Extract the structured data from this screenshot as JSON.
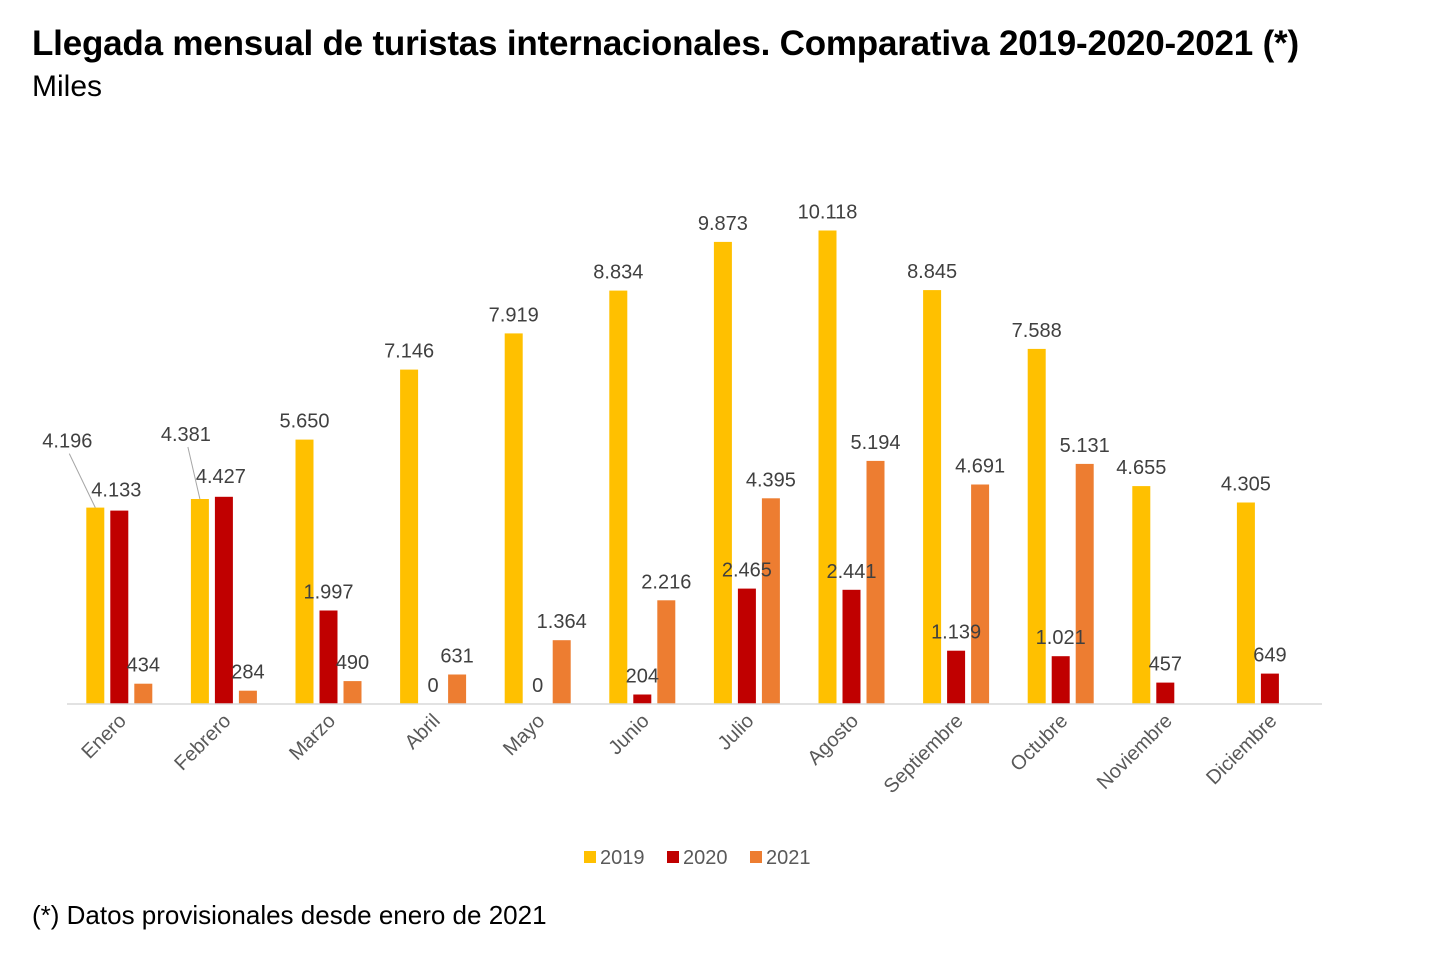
{
  "chart_data": {
    "type": "bar",
    "title": "Llegada mensual de turistas internacionales. Comparativa 2019-2020-2021 (*)",
    "subtitle": "Miles",
    "categories": [
      "Enero",
      "Febrero",
      "Marzo",
      "Abril",
      "Mayo",
      "Junio",
      "Julio",
      "Agosto",
      "Septiembre",
      "Octubre",
      "Noviembre",
      "Diciembre"
    ],
    "series": [
      {
        "name": "2019",
        "color": "#FFC000",
        "values": [
          4196,
          4381,
          5650,
          7146,
          7919,
          8834,
          9873,
          10118,
          8845,
          7588,
          4655,
          4305
        ],
        "labels": [
          "4.196",
          "4.381",
          "5.650",
          "7.146",
          "7.919",
          "8.834",
          "9.873",
          "10.118",
          "8.845",
          "7.588",
          "4.655",
          "4.305"
        ]
      },
      {
        "name": "2020",
        "color": "#C00000",
        "values": [
          4133,
          4427,
          1997,
          0,
          0,
          204,
          2465,
          2441,
          1139,
          1021,
          457,
          649
        ],
        "labels": [
          "4.133",
          "4.427",
          "1.997",
          "0",
          "0",
          "204",
          "2.465",
          "2.441",
          "1.139",
          "1.021",
          "457",
          "649"
        ]
      },
      {
        "name": "2021",
        "color": "#ED7D31",
        "values": [
          434,
          284,
          490,
          631,
          1364,
          2216,
          4395,
          5194,
          4691,
          5131,
          null,
          null
        ],
        "labels": [
          "434",
          "284",
          "490",
          "631",
          "1.364",
          "2.216",
          "4.395",
          "5.194",
          "4.691",
          "5.131",
          null,
          null
        ]
      }
    ],
    "ylim": [
      0,
      10500
    ],
    "grid": false,
    "legend_position": "bottom",
    "footnote": "(*) Datos provisionales desde enero de 2021"
  }
}
